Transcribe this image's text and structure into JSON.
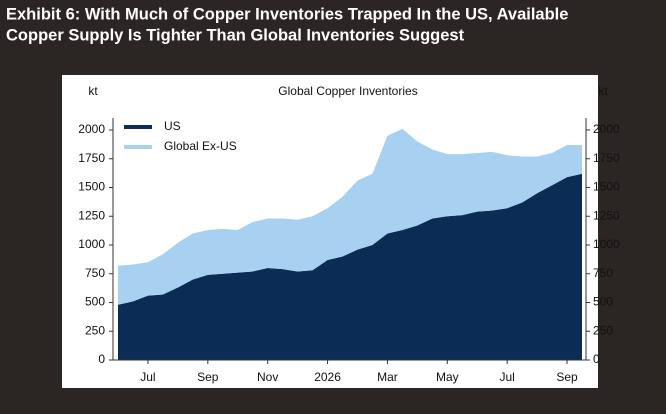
{
  "header": {
    "title_lines": [
      "Exhibit 6: With Much of Copper Inventories Trapped In the US, Available",
      "Copper Supply Is Tighter Than Global Inventories Suggest"
    ]
  },
  "chart_data": {
    "type": "stacked_area",
    "title": "Global Copper Inventories",
    "ylabel": "kt",
    "y2label": "kt",
    "categories": [
      null,
      null,
      "Jul",
      null,
      null,
      null,
      "Sep",
      null,
      null,
      null,
      "Nov",
      null,
      null,
      null,
      "2026",
      null,
      null,
      null,
      "Mar",
      null,
      null,
      null,
      "May",
      null,
      null,
      null,
      "Jul",
      null,
      null,
      null,
      "Sep",
      null
    ],
    "series": [
      {
        "name": "US",
        "color": "#0b2d55",
        "values": [
          480,
          510,
          560,
          570,
          630,
          700,
          740,
          750,
          760,
          770,
          800,
          790,
          770,
          780,
          870,
          900,
          960,
          1000,
          1100,
          1130,
          1170,
          1230,
          1250,
          1260,
          1290,
          1300,
          1320,
          1370,
          1450,
          1520,
          1590,
          1620
        ]
      },
      {
        "name": "Global Ex-US",
        "color": "#a8d0f0",
        "values": [
          340,
          320,
          290,
          350,
          390,
          400,
          390,
          390,
          370,
          430,
          430,
          440,
          450,
          470,
          450,
          520,
          600,
          620,
          850,
          880,
          730,
          600,
          540,
          530,
          510,
          510,
          460,
          400,
          320,
          280,
          280,
          250
        ]
      }
    ],
    "ylim": [
      0,
      2000
    ],
    "yticks": [
      0,
      250,
      500,
      750,
      1000,
      1250,
      1500,
      1750,
      2000
    ],
    "legend": "upper-left"
  }
}
